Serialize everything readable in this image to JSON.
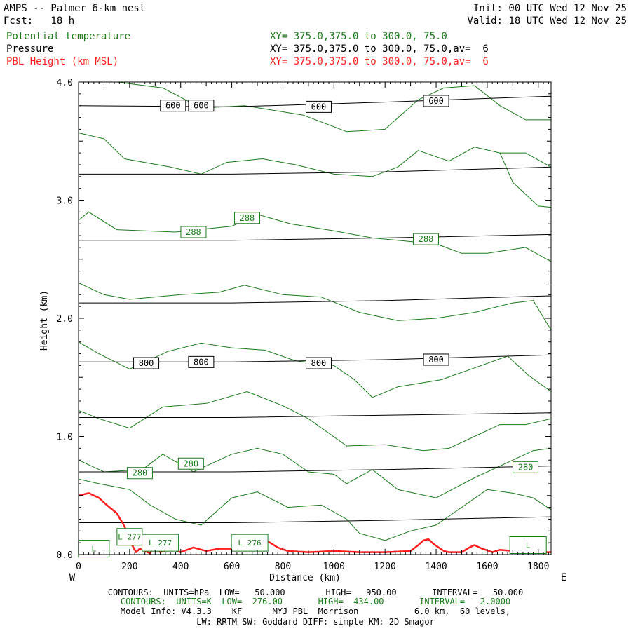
{
  "header": {
    "title": "AMPS -- Palmer 6-km nest",
    "fcst": "Fcst:   18 h",
    "init": "Init: 00 UTC Wed 12 Nov 25",
    "valid": "Valid: 18 UTC Wed 12 Nov 25",
    "fields": [
      {
        "name": "Potential temperature",
        "xy": "XY= 375.0,375.0 to 300.0, 75.0"
      },
      {
        "name": "Pressure",
        "xy": "XY= 375.0,375.0 to 300.0, 75.0,av=  6"
      },
      {
        "name": "PBL Height (km MSL)",
        "xy": "XY= 375.0,375.0 to 300.0, 75.0,av=  6"
      }
    ]
  },
  "colors": {
    "theta": "#1a7a1a",
    "pressure": "#000000",
    "pbl": "#ff1f1f"
  },
  "chart_data": {
    "type": "line",
    "title": "AMPS -- Palmer 6-km nest",
    "xlabel": "Distance (km)",
    "ylabel": "Height (km)",
    "xlim": [
      0,
      1850
    ],
    "ylim": [
      0,
      4.0
    ],
    "xticks": [
      0,
      200,
      400,
      600,
      800,
      1000,
      1200,
      1400,
      1600,
      1800
    ],
    "yticks": [
      0.0,
      1.0,
      2.0,
      3.0,
      4.0
    ],
    "left_label": "W",
    "right_label": "E",
    "pressure_contours": [
      {
        "label": "600",
        "points": [
          [
            0,
            3.8
          ],
          [
            600,
            3.79
          ],
          [
            1200,
            3.83
          ],
          [
            1850,
            3.88
          ]
        ],
        "label_at": [
          [
            370,
            3.8
          ],
          [
            480,
            3.8
          ],
          [
            940,
            3.79
          ],
          [
            1400,
            3.84
          ]
        ]
      },
      {
        "label": "",
        "points": [
          [
            0,
            3.22
          ],
          [
            600,
            3.22
          ],
          [
            1200,
            3.24
          ],
          [
            1850,
            3.28
          ]
        ],
        "label_at": []
      },
      {
        "label": "",
        "points": [
          [
            0,
            2.66
          ],
          [
            600,
            2.66
          ],
          [
            1200,
            2.68
          ],
          [
            1850,
            2.71
          ]
        ],
        "label_at": []
      },
      {
        "label": "",
        "points": [
          [
            0,
            2.13
          ],
          [
            600,
            2.13
          ],
          [
            1200,
            2.15
          ],
          [
            1850,
            2.19
          ]
        ],
        "label_at": []
      },
      {
        "label": "800",
        "points": [
          [
            0,
            1.63
          ],
          [
            600,
            1.63
          ],
          [
            1200,
            1.65
          ],
          [
            1850,
            1.69
          ]
        ],
        "label_at": [
          [
            265,
            1.62
          ],
          [
            480,
            1.63
          ],
          [
            940,
            1.62
          ],
          [
            1400,
            1.65
          ]
        ]
      },
      {
        "label": "",
        "points": [
          [
            0,
            1.16
          ],
          [
            600,
            1.16
          ],
          [
            1200,
            1.18
          ],
          [
            1850,
            1.2
          ]
        ],
        "label_at": []
      },
      {
        "label": "",
        "points": [
          [
            0,
            0.7
          ],
          [
            600,
            0.7
          ],
          [
            1200,
            0.72
          ],
          [
            1850,
            0.75
          ]
        ],
        "label_at": []
      },
      {
        "label": "",
        "points": [
          [
            0,
            0.27
          ],
          [
            600,
            0.27
          ],
          [
            1200,
            0.29
          ],
          [
            1850,
            0.32
          ]
        ],
        "label_at": []
      }
    ],
    "theta_contours": [
      {
        "label": "",
        "points": [
          [
            150,
            4.0
          ],
          [
            330,
            3.95
          ],
          [
            480,
            3.78
          ],
          [
            650,
            3.8
          ],
          [
            880,
            3.72
          ],
          [
            1050,
            3.58
          ],
          [
            1200,
            3.6
          ],
          [
            1330,
            3.85
          ],
          [
            1430,
            3.95
          ],
          [
            1550,
            3.97
          ],
          [
            1650,
            3.8
          ],
          [
            1750,
            3.68
          ],
          [
            1850,
            3.68
          ]
        ]
      },
      {
        "label": "",
        "points": [
          [
            0,
            3.57
          ],
          [
            100,
            3.52
          ],
          [
            180,
            3.35
          ],
          [
            360,
            3.28
          ],
          [
            480,
            3.22
          ],
          [
            580,
            3.32
          ],
          [
            720,
            3.35
          ],
          [
            850,
            3.3
          ],
          [
            1000,
            3.22
          ],
          [
            1150,
            3.2
          ],
          [
            1250,
            3.28
          ],
          [
            1330,
            3.42
          ],
          [
            1450,
            3.33
          ],
          [
            1550,
            3.45
          ],
          [
            1650,
            3.4
          ],
          [
            1750,
            3.4
          ],
          [
            1850,
            3.28
          ]
        ]
      },
      {
        "label": "",
        "points": [
          [
            1650,
            3.4
          ],
          [
            1700,
            3.15
          ],
          [
            1800,
            2.95
          ],
          [
            1850,
            2.94
          ]
        ]
      },
      {
        "label": "288",
        "points": [
          [
            0,
            2.83
          ],
          [
            40,
            2.9
          ],
          [
            150,
            2.75
          ],
          [
            380,
            2.73
          ],
          [
            600,
            2.78
          ],
          [
            700,
            2.88
          ],
          [
            830,
            2.8
          ],
          [
            1000,
            2.74
          ],
          [
            1150,
            2.68
          ],
          [
            1300,
            2.65
          ],
          [
            1400,
            2.63
          ],
          [
            1500,
            2.55
          ],
          [
            1600,
            2.55
          ],
          [
            1750,
            2.6
          ],
          [
            1850,
            2.48
          ]
        ],
        "label_at": [
          [
            450,
            2.73
          ],
          [
            660,
            2.85
          ],
          [
            1360,
            2.67
          ]
        ]
      },
      {
        "label": "",
        "points": [
          [
            0,
            2.3
          ],
          [
            100,
            2.2
          ],
          [
            200,
            2.16
          ],
          [
            400,
            2.2
          ],
          [
            550,
            2.22
          ],
          [
            650,
            2.28
          ],
          [
            800,
            2.2
          ],
          [
            950,
            2.18
          ],
          [
            1100,
            2.05
          ],
          [
            1250,
            1.98
          ],
          [
            1400,
            2.0
          ],
          [
            1550,
            2.05
          ],
          [
            1700,
            2.13
          ],
          [
            1780,
            2.15
          ],
          [
            1850,
            1.9
          ]
        ]
      },
      {
        "label": "",
        "points": [
          [
            0,
            1.8
          ],
          [
            80,
            1.7
          ],
          [
            200,
            1.57
          ],
          [
            350,
            1.72
          ],
          [
            480,
            1.79
          ],
          [
            600,
            1.75
          ],
          [
            730,
            1.73
          ],
          [
            850,
            1.64
          ],
          [
            1000,
            1.6
          ],
          [
            1080,
            1.48
          ],
          [
            1150,
            1.33
          ],
          [
            1250,
            1.42
          ],
          [
            1420,
            1.48
          ],
          [
            1550,
            1.58
          ],
          [
            1680,
            1.68
          ],
          [
            1760,
            1.52
          ],
          [
            1850,
            1.38
          ]
        ]
      },
      {
        "label": "",
        "points": [
          [
            0,
            1.22
          ],
          [
            80,
            1.15
          ],
          [
            200,
            1.07
          ],
          [
            330,
            1.25
          ],
          [
            500,
            1.28
          ],
          [
            660,
            1.38
          ],
          [
            800,
            1.26
          ],
          [
            900,
            1.15
          ],
          [
            1050,
            0.92
          ],
          [
            1200,
            0.93
          ],
          [
            1350,
            0.88
          ],
          [
            1450,
            0.9
          ],
          [
            1550,
            1.0
          ],
          [
            1650,
            1.1
          ],
          [
            1750,
            1.1
          ],
          [
            1850,
            1.15
          ]
        ]
      },
      {
        "label": "280",
        "points": [
          [
            0,
            0.8
          ],
          [
            100,
            0.7
          ],
          [
            250,
            0.72
          ],
          [
            330,
            0.85
          ],
          [
            450,
            0.7
          ],
          [
            600,
            0.85
          ],
          [
            700,
            0.9
          ],
          [
            800,
            0.85
          ],
          [
            900,
            0.7
          ],
          [
            1000,
            0.68
          ],
          [
            1050,
            0.6
          ],
          [
            1150,
            0.72
          ],
          [
            1250,
            0.55
          ],
          [
            1400,
            0.48
          ],
          [
            1550,
            0.65
          ],
          [
            1700,
            0.8
          ],
          [
            1780,
            0.88
          ],
          [
            1850,
            0.9
          ]
        ],
        "label_at": [
          [
            240,
            0.69
          ],
          [
            440,
            0.77
          ],
          [
            1750,
            0.74
          ]
        ]
      },
      {
        "label": "",
        "points": [
          [
            0,
            0.64
          ],
          [
            80,
            0.6
          ],
          [
            200,
            0.55
          ],
          [
            280,
            0.42
          ],
          [
            380,
            0.3
          ],
          [
            480,
            0.25
          ],
          [
            600,
            0.48
          ],
          [
            700,
            0.53
          ],
          [
            820,
            0.4
          ],
          [
            950,
            0.42
          ],
          [
            1050,
            0.3
          ],
          [
            1100,
            0.18
          ],
          [
            1200,
            0.12
          ],
          [
            1300,
            0.2
          ],
          [
            1400,
            0.25
          ],
          [
            1500,
            0.4
          ],
          [
            1600,
            0.55
          ],
          [
            1700,
            0.52
          ],
          [
            1780,
            0.48
          ],
          [
            1850,
            0.38
          ]
        ]
      }
    ],
    "theta_low_labels": [
      "L",
      "L 277",
      "L 277",
      "L 276",
      "L"
    ],
    "pbl_height": {
      "name": "PBL Height (km MSL)",
      "x": [
        0,
        40,
        80,
        110,
        150,
        180,
        200,
        215,
        225,
        240,
        280,
        300,
        320,
        360,
        400,
        450,
        500,
        550,
        600,
        620,
        640,
        660,
        680,
        700,
        720,
        750,
        780,
        820,
        900,
        1000,
        1100,
        1200,
        1300,
        1330,
        1350,
        1370,
        1390,
        1410,
        1430,
        1450,
        1500,
        1530,
        1550,
        1580,
        1620,
        1650,
        1700,
        1750,
        1800,
        1850
      ],
      "y": [
        0.5,
        0.52,
        0.48,
        0.42,
        0.35,
        0.24,
        0.12,
        0.06,
        0.02,
        0.05,
        0.01,
        0.08,
        0.02,
        0.05,
        0.02,
        0.06,
        0.03,
        0.05,
        0.05,
        0.12,
        0.14,
        0.13,
        0.14,
        0.12,
        0.14,
        0.1,
        0.06,
        0.03,
        0.02,
        0.03,
        0.02,
        0.02,
        0.03,
        0.08,
        0.12,
        0.13,
        0.09,
        0.06,
        0.03,
        0.02,
        0.02,
        0.06,
        0.08,
        0.05,
        0.02,
        0.04,
        0.03,
        0.02,
        0.02,
        0.02
      ]
    }
  },
  "footer": {
    "line1": "CONTOURS:  UNITS=hPa  LOW=   50.000        HIGH=   950.00       INTERVAL=   50.000",
    "line2": "CONTOURS:  UNITS=K  LOW=  276.00       HIGH=  434.00       INTERVAL=   2.0000",
    "line3": "Model Info: V4.3.3    KF      MYJ PBL  Morrison           6.0 km,  60 levels,",
    "line4": "LW: RRTM SW: Goddard DIFF: simple KM: 2D Smagor"
  }
}
